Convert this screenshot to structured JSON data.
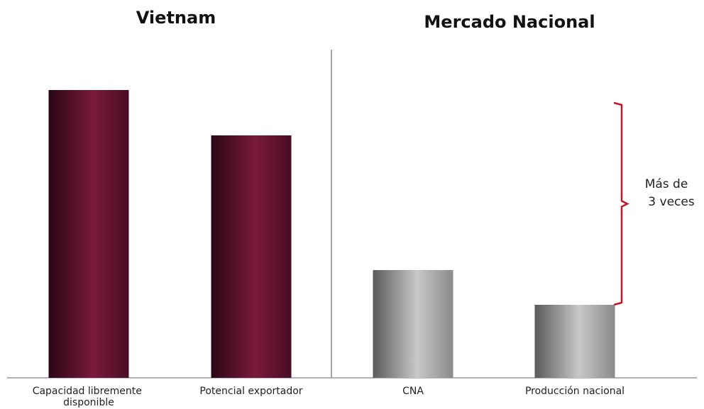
{
  "chart_data": [
    {
      "type": "bar",
      "title": "Vietnam",
      "categories": [
        "Capacidad libremente disponible",
        "Potencial exportador"
      ],
      "values": [
        406,
        342
      ],
      "color": "#7a1a3c",
      "ylim": [
        0,
        480
      ],
      "grid": false
    },
    {
      "type": "bar",
      "title": "Mercado Nacional",
      "categories": [
        "CNA",
        "Producción nacional"
      ],
      "values": [
        152,
        103
      ],
      "color": "#a8a8a8",
      "ylim": [
        0,
        480
      ],
      "grid": false,
      "annotation": {
        "text_line1": "Más de",
        "text_line2": "3 veces",
        "color": "#c0182a"
      }
    }
  ]
}
